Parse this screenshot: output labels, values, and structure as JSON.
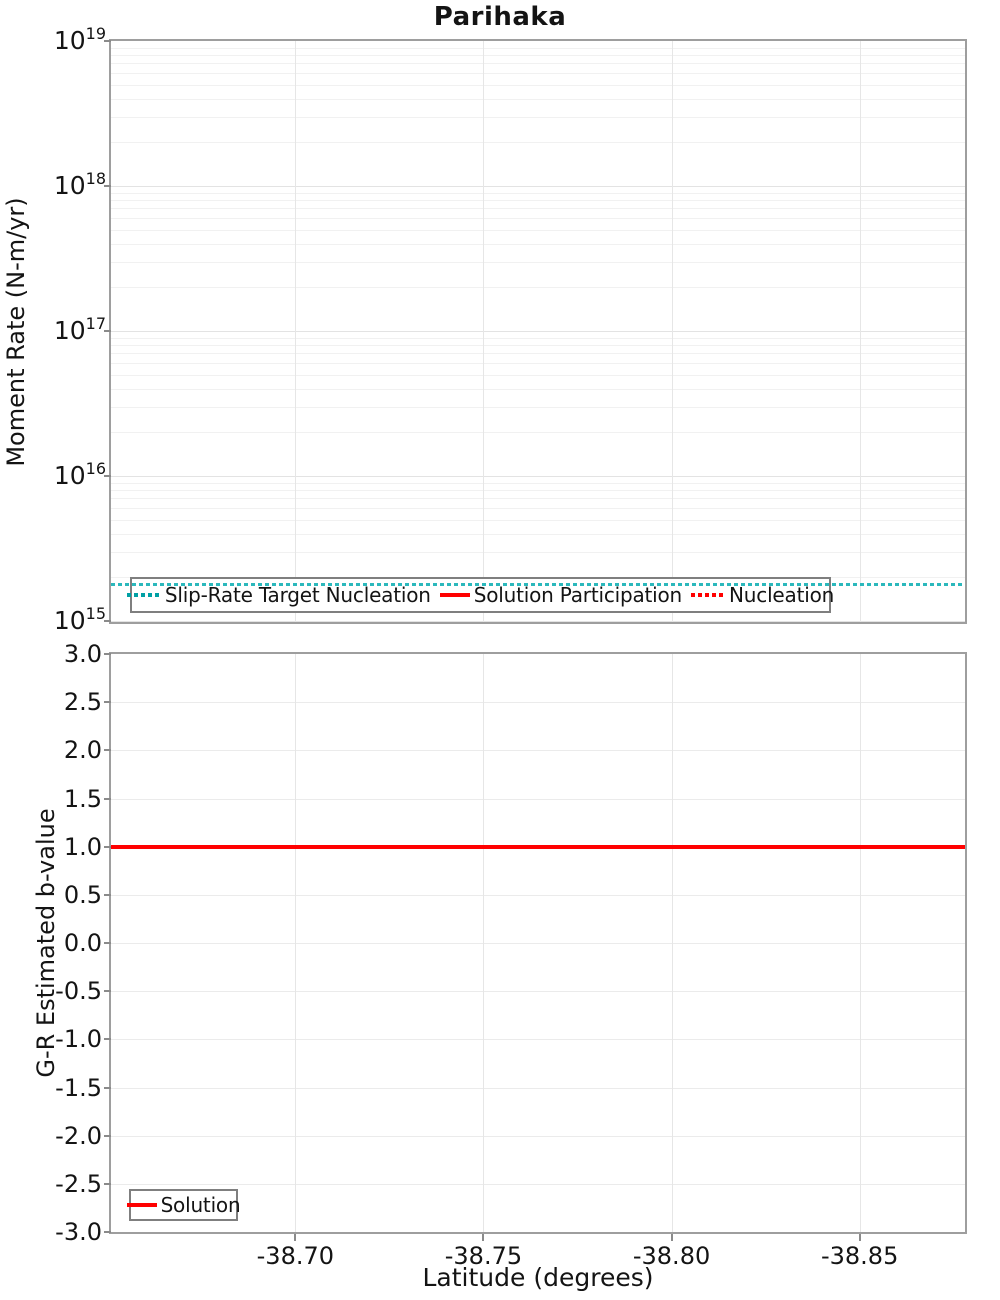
{
  "title": "Parihaka",
  "colors": {
    "slip_rate_line": "#2bb8bc",
    "legend_teal": "#00a0a4",
    "solution_red": "#ff0000",
    "grid_minor": "#f1f1f1",
    "grid_major": "#e3e3e3",
    "grid_vertical": "#e6e6e6",
    "grid_horizontal_linear": "#ebebeb",
    "axis_border": "#9e9e9e",
    "legend_border": "#7f7f7f",
    "tick_mark": "#8a8a8a",
    "text": "#141414"
  },
  "top_chart": {
    "ylabel": "Moment Rate (N-m/yr)",
    "y_ticks": [
      {
        "base": "10",
        "exp": "19",
        "log": 19
      },
      {
        "base": "10",
        "exp": "18",
        "log": 18
      },
      {
        "base": "10",
        "exp": "17",
        "log": 17
      },
      {
        "base": "10",
        "exp": "16",
        "log": 16
      },
      {
        "base": "10",
        "exp": "15",
        "log": 15
      }
    ],
    "legend_items": [
      {
        "label": "Slip-Rate Target Nucleation",
        "line": "dotted",
        "color_key": "legend_teal"
      },
      {
        "label": "Solution Participation",
        "line": "solid",
        "color_key": "solution_red"
      },
      {
        "label": "Nucleation",
        "line": "dotted",
        "color_key": "solution_red"
      }
    ]
  },
  "bottom_chart": {
    "ylabel": "G-R Estimated b-value",
    "xlabel": "Latitude (degrees)",
    "y_ticks": [
      {
        "label": "3.0",
        "value": 3.0
      },
      {
        "label": "2.5",
        "value": 2.5
      },
      {
        "label": "2.0",
        "value": 2.0
      },
      {
        "label": "1.5",
        "value": 1.5
      },
      {
        "label": "1.0",
        "value": 1.0
      },
      {
        "label": "0.5",
        "value": 0.5
      },
      {
        "label": "0.0",
        "value": 0.0
      },
      {
        "label": "-0.5",
        "value": -0.5
      },
      {
        "label": "-1.0",
        "value": -1.0
      },
      {
        "label": "-1.5",
        "value": -1.5
      },
      {
        "label": "-2.0",
        "value": -2.0
      },
      {
        "label": "-2.5",
        "value": -2.5
      },
      {
        "label": "-3.0",
        "value": -3.0
      }
    ],
    "x_ticks": [
      {
        "label": "-38.70",
        "value": -38.7
      },
      {
        "label": "-38.75",
        "value": -38.75
      },
      {
        "label": "-38.80",
        "value": -38.8
      },
      {
        "label": "-38.85",
        "value": -38.85
      }
    ],
    "legend_items": [
      {
        "label": "Solution",
        "line": "solid",
        "color_key": "solution_red"
      }
    ]
  },
  "chart_data": [
    {
      "type": "line",
      "title": "Parihaka",
      "xlabel": "Latitude (degrees)",
      "ylabel": "Moment Rate (N-m/yr)",
      "yscale": "log",
      "ylim": [
        1000000000000000.0,
        1e+19
      ],
      "xlim": [
        -38.651,
        -38.878
      ],
      "x_axis_reversed": true,
      "grid": true,
      "legend_position": "bottom-left-inside",
      "series": [
        {
          "name": "Slip-Rate Target Nucleation",
          "style": "dotted",
          "color": "#2bb8bc",
          "constant_y": 1800000000000000.0,
          "visible": true
        },
        {
          "name": "Solution Participation",
          "style": "solid",
          "color": "#ff0000",
          "constant_y": null,
          "visible": false
        },
        {
          "name": "Nucleation",
          "style": "dotted",
          "color": "#ff0000",
          "constant_y": null,
          "visible": false
        }
      ]
    },
    {
      "type": "line",
      "xlabel": "Latitude (degrees)",
      "ylabel": "G-R Estimated b-value",
      "ylim": [
        -3.0,
        3.0
      ],
      "xlim": [
        -38.651,
        -38.878
      ],
      "x_axis_reversed": true,
      "x_tick_values": [
        -38.7,
        -38.75,
        -38.8,
        -38.85
      ],
      "y_tick_step": 0.5,
      "grid": true,
      "legend_position": "bottom-left-inside",
      "series": [
        {
          "name": "Solution",
          "style": "solid",
          "color": "#ff0000",
          "constant_y": 1.0,
          "visible": true
        }
      ]
    }
  ]
}
